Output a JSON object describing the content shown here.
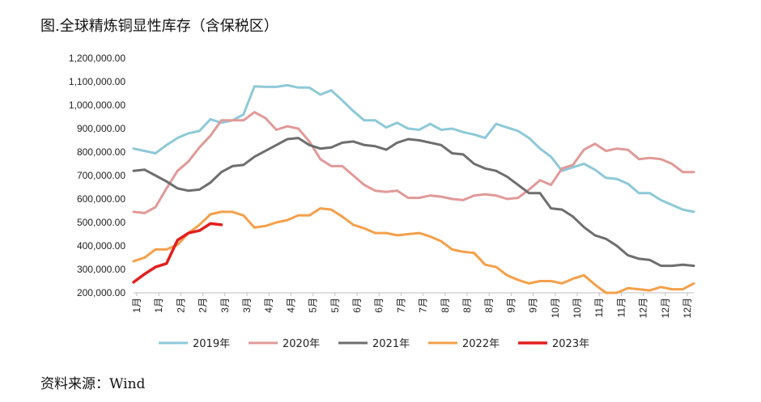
{
  "title": "图.全球精炼铜显性库存（含保税区）",
  "source": "资料来源：Wind",
  "chart_data": {
    "type": "line",
    "title": "图.全球精炼铜显性库存（含保税区）",
    "xlabel": "",
    "ylabel": "",
    "ylim": [
      200000,
      1200000
    ],
    "yticks": [
      "200,000.00",
      "300,000.00",
      "400,000.00",
      "500,000.00",
      "600,000.00",
      "700,000.00",
      "800,000.00",
      "900,000.00",
      "1,000,000.00",
      "1,100,000.00",
      "1,200,000.00"
    ],
    "ytick_values": [
      200000,
      300000,
      400000,
      500000,
      600000,
      700000,
      800000,
      900000,
      1000000,
      1100000,
      1200000
    ],
    "xticks": [
      "1月",
      "1月",
      "2月",
      "2月",
      "3月",
      "3月",
      "4月",
      "4月",
      "5月",
      "5月",
      "6月",
      "6月",
      "7月",
      "7月",
      "8月",
      "8月",
      "8月",
      "9月",
      "9月",
      "10月",
      "10月",
      "11月",
      "11月",
      "12月",
      "12月",
      "12月"
    ],
    "points_per_year": 52,
    "grid": false,
    "legend_position": "bottom",
    "series": [
      {
        "name": "2019年",
        "color": "#8EC9D8",
        "values": [
          815000,
          805000,
          795000,
          830000,
          860000,
          880000,
          890000,
          940000,
          925000,
          935000,
          960000,
          1080000,
          1078000,
          1078000,
          1085000,
          1075000,
          1075000,
          1045000,
          1063000,
          1020000,
          975000,
          935000,
          935000,
          905000,
          925000,
          900000,
          895000,
          920000,
          895000,
          900000,
          885000,
          875000,
          860000,
          920000,
          905000,
          890000,
          860000,
          815000,
          780000,
          720000,
          735000,
          750000,
          725000,
          690000,
          685000,
          665000,
          625000,
          625000,
          595000,
          575000,
          555000,
          545000
        ]
      },
      {
        "name": "2020年",
        "color": "#E09A98",
        "values": [
          545000,
          540000,
          565000,
          645000,
          720000,
          760000,
          820000,
          870000,
          935000,
          935000,
          935000,
          970000,
          945000,
          895000,
          910000,
          900000,
          845000,
          770000,
          740000,
          740000,
          700000,
          660000,
          635000,
          630000,
          635000,
          605000,
          605000,
          615000,
          610000,
          600000,
          595000,
          615000,
          620000,
          615000,
          600000,
          605000,
          640000,
          680000,
          660000,
          730000,
          745000,
          810000,
          835000,
          805000,
          815000,
          810000,
          770000,
          775000,
          770000,
          750000,
          715000,
          715000
        ]
      },
      {
        "name": "2021年",
        "color": "#6E6E6E",
        "values": [
          720000,
          725000,
          700000,
          675000,
          645000,
          635000,
          640000,
          670000,
          715000,
          740000,
          745000,
          780000,
          805000,
          830000,
          855000,
          860000,
          830000,
          815000,
          820000,
          840000,
          845000,
          830000,
          825000,
          810000,
          840000,
          855000,
          850000,
          840000,
          830000,
          795000,
          790000,
          750000,
          730000,
          720000,
          695000,
          660000,
          625000,
          625000,
          560000,
          555000,
          525000,
          480000,
          445000,
          430000,
          400000,
          360000,
          345000,
          340000,
          315000,
          315000,
          320000,
          315000
        ]
      },
      {
        "name": "2022年",
        "color": "#F5A04A",
        "values": [
          335000,
          350000,
          385000,
          385000,
          405000,
          455000,
          490000,
          535000,
          545000,
          545000,
          530000,
          478000,
          485000,
          500000,
          510000,
          530000,
          530000,
          560000,
          555000,
          525000,
          490000,
          475000,
          455000,
          455000,
          445000,
          450000,
          455000,
          440000,
          420000,
          385000,
          375000,
          370000,
          320000,
          310000,
          275000,
          255000,
          240000,
          250000,
          250000,
          240000,
          260000,
          275000,
          235000,
          200000,
          200000,
          220000,
          215000,
          210000,
          225000,
          215000,
          215000,
          240000
        ]
      },
      {
        "name": "2023年",
        "color": "#E31F1F",
        "values": [
          245000,
          280000,
          310000,
          325000,
          425000,
          455000,
          465000,
          495000,
          490000
        ]
      }
    ]
  }
}
